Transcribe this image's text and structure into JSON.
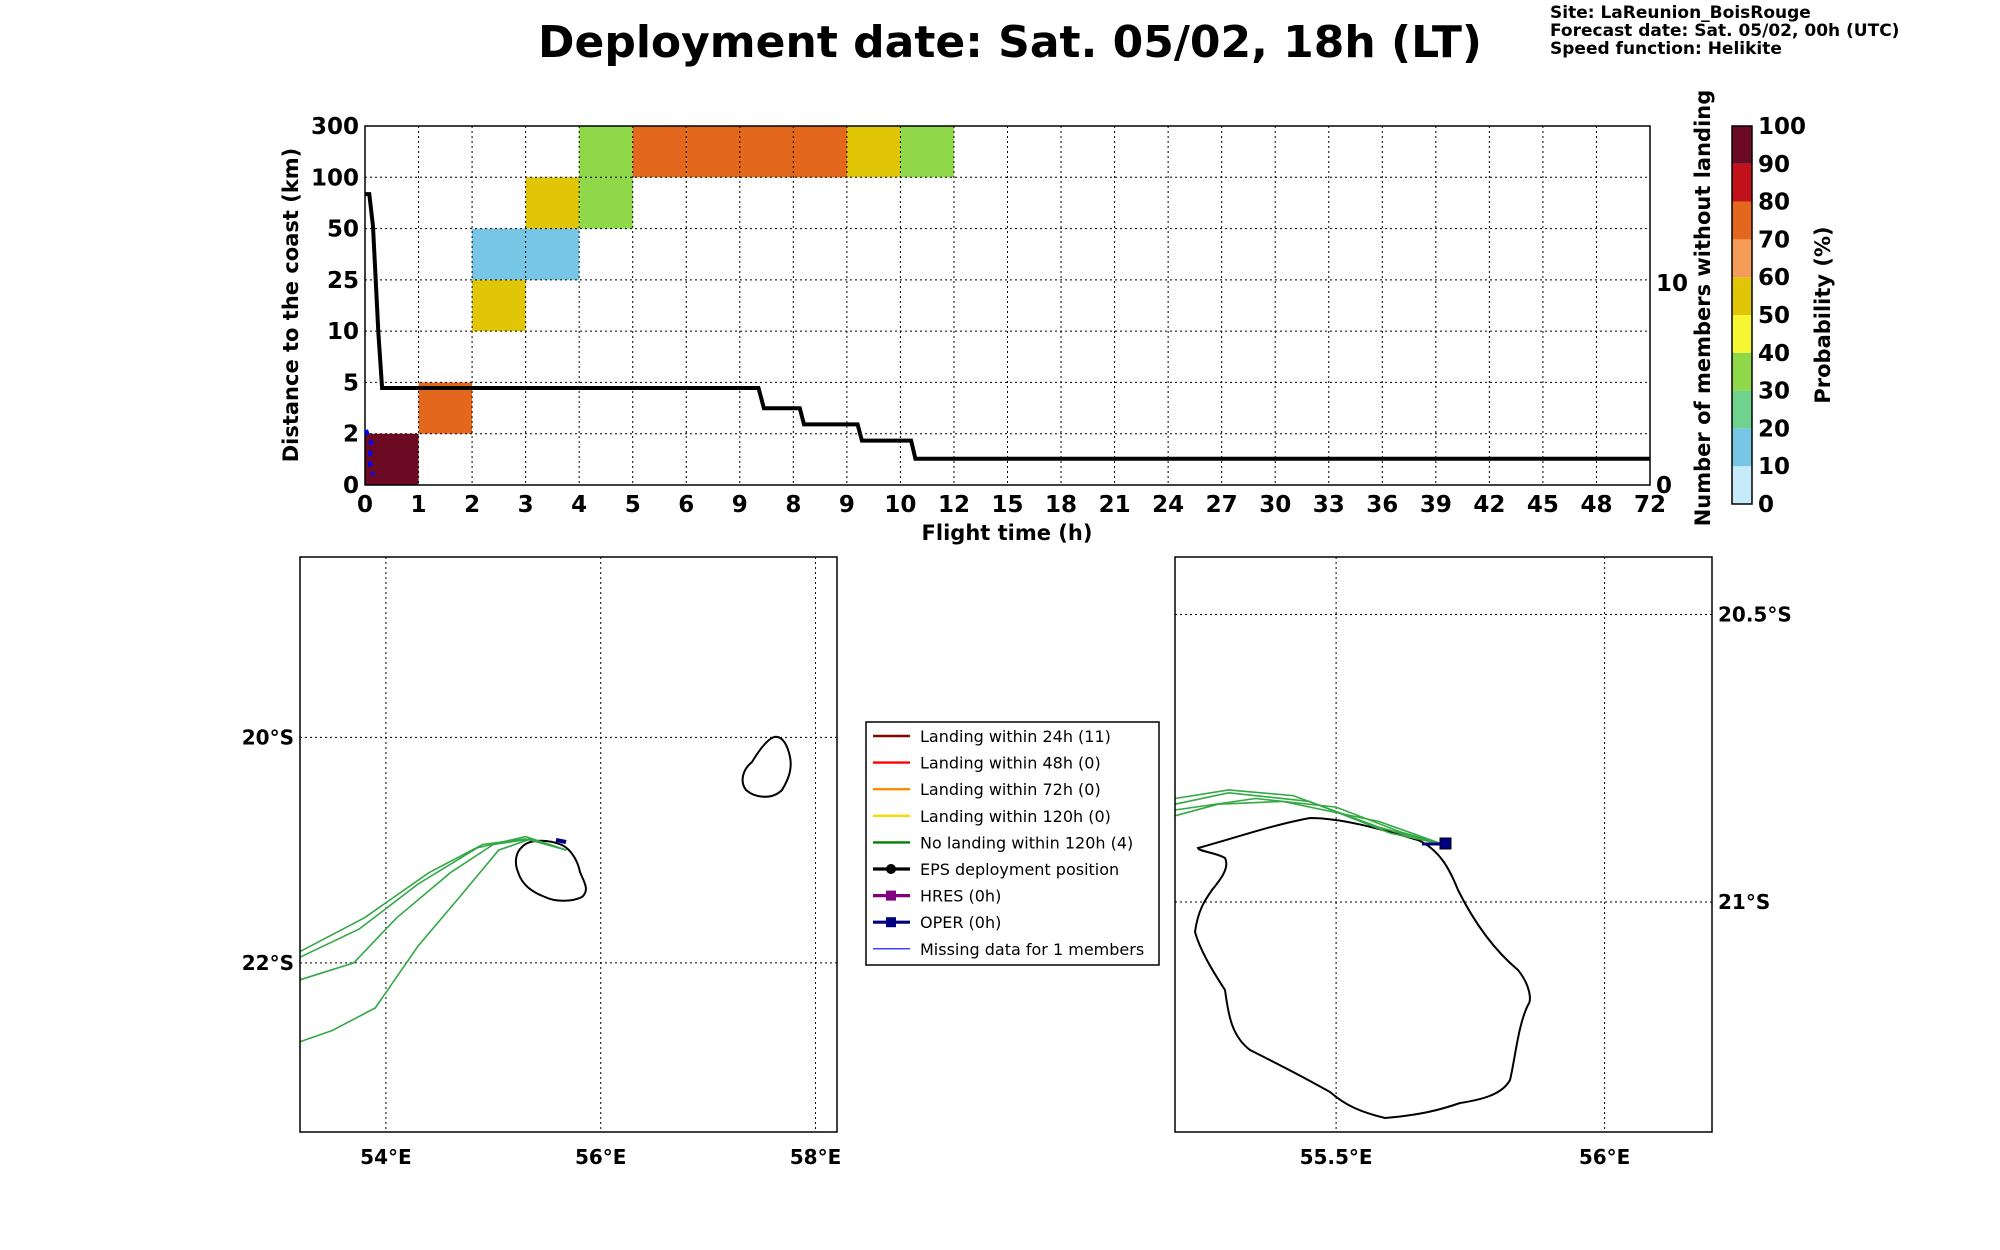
{
  "header": {
    "title": "Deployment date: Sat. 05/02, 18h (LT)",
    "site": "Site: LaReunion_BoisRouge",
    "forecast": "Forecast date: Sat. 05/02, 00h (UTC)",
    "speed": "Speed function: Helikite"
  },
  "chart_data": [
    {
      "type": "heatmap",
      "title": "",
      "xlabel": "Flight time (h)",
      "ylabel": "Distance to the coast (km)",
      "y2label": "Number of members without landing",
      "x_ticks": [
        "0",
        "1",
        "2",
        "3",
        "4",
        "5",
        "6",
        "9",
        "8",
        "9",
        "10",
        "12",
        "15",
        "18",
        "21",
        "24",
        "27",
        "30",
        "33",
        "36",
        "39",
        "42",
        "45",
        "48",
        "72"
      ],
      "y_ticks": [
        "0",
        "2",
        "5",
        "10",
        "25",
        "50",
        "100",
        "300"
      ],
      "y2_ticks": [
        "0",
        "10"
      ],
      "colorbar": {
        "label": "Probability (%)",
        "ticks": [
          "0",
          "10",
          "20",
          "30",
          "40",
          "50",
          "60",
          "70",
          "80",
          "90",
          "100"
        ],
        "colors": [
          "#c6ecfa",
          "#78c6e5",
          "#6fd38e",
          "#8ed84a",
          "#f6f633",
          "#e0c607",
          "#f59c58",
          "#e3681d",
          "#c1121c",
          "#6b0a22"
        ]
      },
      "cells": [
        {
          "x": "0-1h",
          "y": "0-2 km",
          "prob": 100,
          "color": "#6b0a22"
        },
        {
          "x": "1-2h",
          "y": "2-5 km",
          "prob": 75,
          "color": "#e3681d"
        },
        {
          "x": "2-3h",
          "y": "10-25 km",
          "prob": 50,
          "color": "#e0c607"
        },
        {
          "x": "2-3h",
          "y": "25-50 km",
          "prob": 10,
          "color": "#78c6e5"
        },
        {
          "x": "3-4h",
          "y": "25-50 km",
          "prob": 10,
          "color": "#78c6e5"
        },
        {
          "x": "3-4h",
          "y": "50-100 km",
          "prob": 50,
          "color": "#e0c607"
        },
        {
          "x": "4-5h",
          "y": "50-100 km",
          "prob": 30,
          "color": "#8ed84a"
        },
        {
          "x": "4-5h",
          "y": "100-300 km",
          "prob": 30,
          "color": "#8ed84a"
        },
        {
          "x": "5-6h",
          "y": "100-300 km",
          "prob": 75,
          "color": "#e3681d"
        },
        {
          "x": "6-9h",
          "y": "100-300 km",
          "prob": 75,
          "color": "#e3681d"
        },
        {
          "x": "9-8h",
          "y": "100-300 km",
          "prob": 75,
          "color": "#e3681d"
        },
        {
          "x": "8-9h",
          "y": "100-300 km",
          "prob": 75,
          "color": "#e3681d"
        },
        {
          "x": "9-10h",
          "y": "100-300 km",
          "prob": 50,
          "color": "#e0c607"
        },
        {
          "x": "10-12h",
          "y": "100-300 km",
          "prob": 30,
          "color": "#8ed84a"
        }
      ],
      "members_without_landing": {
        "x_hours": [
          0,
          0.08,
          0.15,
          0.25,
          0.32,
          7.35,
          7.45,
          8.12,
          8.2,
          9.2,
          9.28,
          10.2,
          10.28,
          72
        ],
        "members": [
          14.4,
          14.4,
          12.8,
          7.5,
          4.8,
          4.8,
          3.8,
          3.8,
          3.0,
          3.0,
          2.2,
          2.2,
          1.3,
          1.3
        ]
      }
    },
    {
      "type": "map",
      "title": "",
      "lon_ticks": [
        "54°E",
        "56°E",
        "58°E"
      ],
      "lat_ticks": [
        "20°S",
        "22°S"
      ],
      "lon_range": [
        53.2,
        58.2
      ],
      "lat_range": [
        -23.5,
        -18.4
      ],
      "trajectories": [
        [
          [
            55.68,
            -21.0
          ],
          [
            55.3,
            -20.9
          ],
          [
            54.9,
            -20.95
          ],
          [
            54.4,
            -21.2
          ],
          [
            53.8,
            -21.6
          ],
          [
            53.2,
            -21.9
          ]
        ],
        [
          [
            55.68,
            -21.0
          ],
          [
            55.3,
            -20.88
          ],
          [
            54.85,
            -20.98
          ],
          [
            54.3,
            -21.3
          ],
          [
            53.75,
            -21.7
          ],
          [
            53.2,
            -21.95
          ]
        ],
        [
          [
            55.68,
            -21.0
          ],
          [
            55.35,
            -20.9
          ],
          [
            55.0,
            -20.95
          ],
          [
            54.6,
            -21.2
          ],
          [
            54.1,
            -21.6
          ],
          [
            53.7,
            -22.0
          ],
          [
            53.2,
            -22.15
          ]
        ],
        [
          [
            55.68,
            -21.0
          ],
          [
            55.35,
            -20.9
          ],
          [
            55.05,
            -21.0
          ],
          [
            54.7,
            -21.4
          ],
          [
            54.3,
            -21.85
          ],
          [
            53.9,
            -22.4
          ],
          [
            53.5,
            -22.6
          ],
          [
            53.2,
            -22.7
          ]
        ]
      ]
    },
    {
      "type": "map",
      "title": "",
      "lon_ticks": [
        "55.5°E",
        "56°E"
      ],
      "lat_ticks": [
        "20.5°S",
        "21°S"
      ],
      "lon_range": [
        55.2,
        56.2
      ],
      "lat_range": [
        -21.4,
        -20.4
      ],
      "trajectories": [
        [
          [
            55.7,
            -20.9
          ],
          [
            55.58,
            -20.87
          ],
          [
            55.42,
            -20.815
          ],
          [
            55.3,
            -20.805
          ],
          [
            55.2,
            -20.82
          ]
        ],
        [
          [
            55.7,
            -20.9
          ],
          [
            55.6,
            -20.88
          ],
          [
            55.45,
            -20.825
          ],
          [
            55.3,
            -20.81
          ],
          [
            55.2,
            -20.83
          ]
        ],
        [
          [
            55.7,
            -20.9
          ],
          [
            55.62,
            -20.878
          ],
          [
            55.5,
            -20.835
          ],
          [
            55.35,
            -20.82
          ],
          [
            55.2,
            -20.84
          ]
        ],
        [
          [
            55.7,
            -20.9
          ],
          [
            55.58,
            -20.86
          ],
          [
            55.4,
            -20.825
          ],
          [
            55.28,
            -20.83
          ],
          [
            55.2,
            -20.85
          ]
        ]
      ]
    }
  ],
  "legend": {
    "items": [
      {
        "label": "Landing within 24h (11)",
        "color": "#8b0000",
        "marker": "line"
      },
      {
        "label": "Landing within 48h (0)",
        "color": "#ff0000",
        "marker": "line"
      },
      {
        "label": "Landing within 72h (0)",
        "color": "#ff8c00",
        "marker": "line"
      },
      {
        "label": "Landing within 120h (0)",
        "color": "#ffd700",
        "marker": "line"
      },
      {
        "label": "No landing within 120h (4)",
        "color": "#008000",
        "marker": "line"
      },
      {
        "label": "EPS deployment position",
        "color": "#000000",
        "marker": "circle"
      },
      {
        "label": "HRES (0h)",
        "color": "#800080",
        "marker": "square"
      },
      {
        "label": "OPER (0h)",
        "color": "#000080",
        "marker": "square"
      },
      {
        "label": "Missing data for 1 members",
        "color": "#0000ff",
        "marker": "thin"
      }
    ]
  }
}
